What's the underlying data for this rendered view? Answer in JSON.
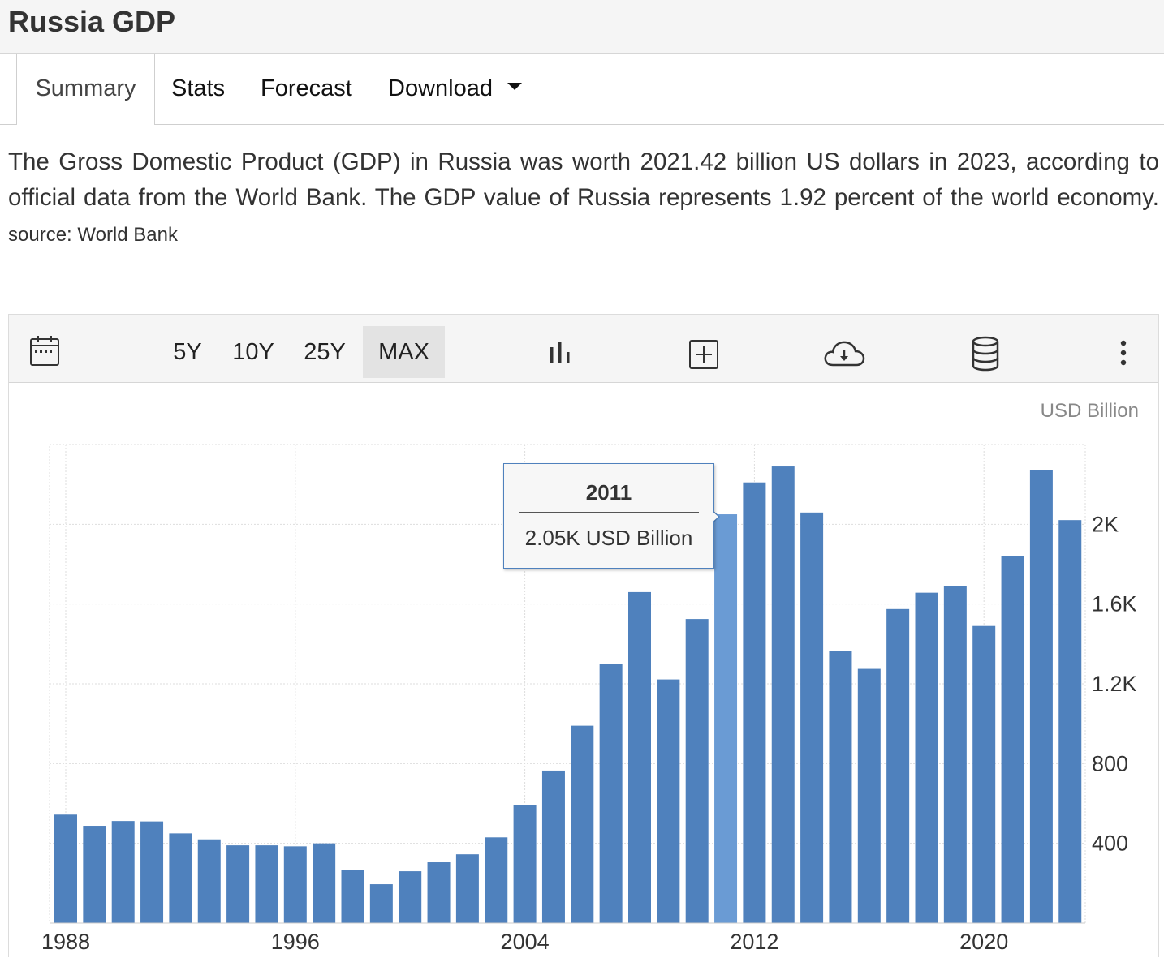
{
  "header": {
    "title": "Russia GDP"
  },
  "tabs": [
    {
      "label": "Summary",
      "active": true
    },
    {
      "label": "Stats"
    },
    {
      "label": "Forecast"
    },
    {
      "label": "Download"
    }
  ],
  "description": {
    "text": "The Gross Domestic Product (GDP) in Russia was worth 2021.42 billion US dollars in 2023, according to official data from the World Bank. The GDP value of Russia represents 1.92 percent of the world economy.",
    "source": "source: World Bank"
  },
  "toolbar": {
    "ranges": [
      {
        "label": "5Y"
      },
      {
        "label": "10Y"
      },
      {
        "label": "25Y"
      },
      {
        "label": "MAX",
        "active": true
      }
    ],
    "icons": [
      "calendar-icon",
      "bar-chart-icon",
      "add-box-icon",
      "cloud-download-icon",
      "database-icon",
      "more-vert-icon"
    ]
  },
  "colors": {
    "bar": "#4f81bd",
    "bar_highlight": "#6a9bd4",
    "grid": "#dddddd"
  },
  "tooltip": {
    "title": "2011",
    "value": "2.05K USD Billion"
  },
  "chart_data": {
    "type": "bar",
    "unit_label": "USD Billion",
    "years": [
      1988,
      1989,
      1990,
      1991,
      1992,
      1993,
      1994,
      1995,
      1996,
      1997,
      1998,
      1999,
      2000,
      2001,
      2002,
      2003,
      2004,
      2005,
      2006,
      2007,
      2008,
      2009,
      2010,
      2011,
      2012,
      2013,
      2014,
      2015,
      2016,
      2017,
      2018,
      2019,
      2020,
      2021,
      2022,
      2023
    ],
    "values": [
      544,
      488,
      512,
      510,
      450,
      420,
      390,
      390,
      385,
      400,
      265,
      195,
      260,
      305,
      345,
      430,
      590,
      765,
      990,
      1300,
      1660,
      1222,
      1525,
      2050,
      2210,
      2290,
      2059,
      1365,
      1275,
      1575,
      1657,
      1690,
      1490,
      1840,
      2270,
      2021
    ],
    "highlight_index": 23,
    "x_ticks": [
      "1988",
      "1996",
      "2004",
      "2012",
      "2020"
    ],
    "y_ticks": [
      400,
      800,
      1200,
      1600,
      2000
    ],
    "y_tick_labels": [
      "400",
      "800",
      "1.2K",
      "1.6K",
      "2K"
    ],
    "ylim": [
      0,
      2400
    ],
    "y_axis_position": "right",
    "grid": true
  }
}
